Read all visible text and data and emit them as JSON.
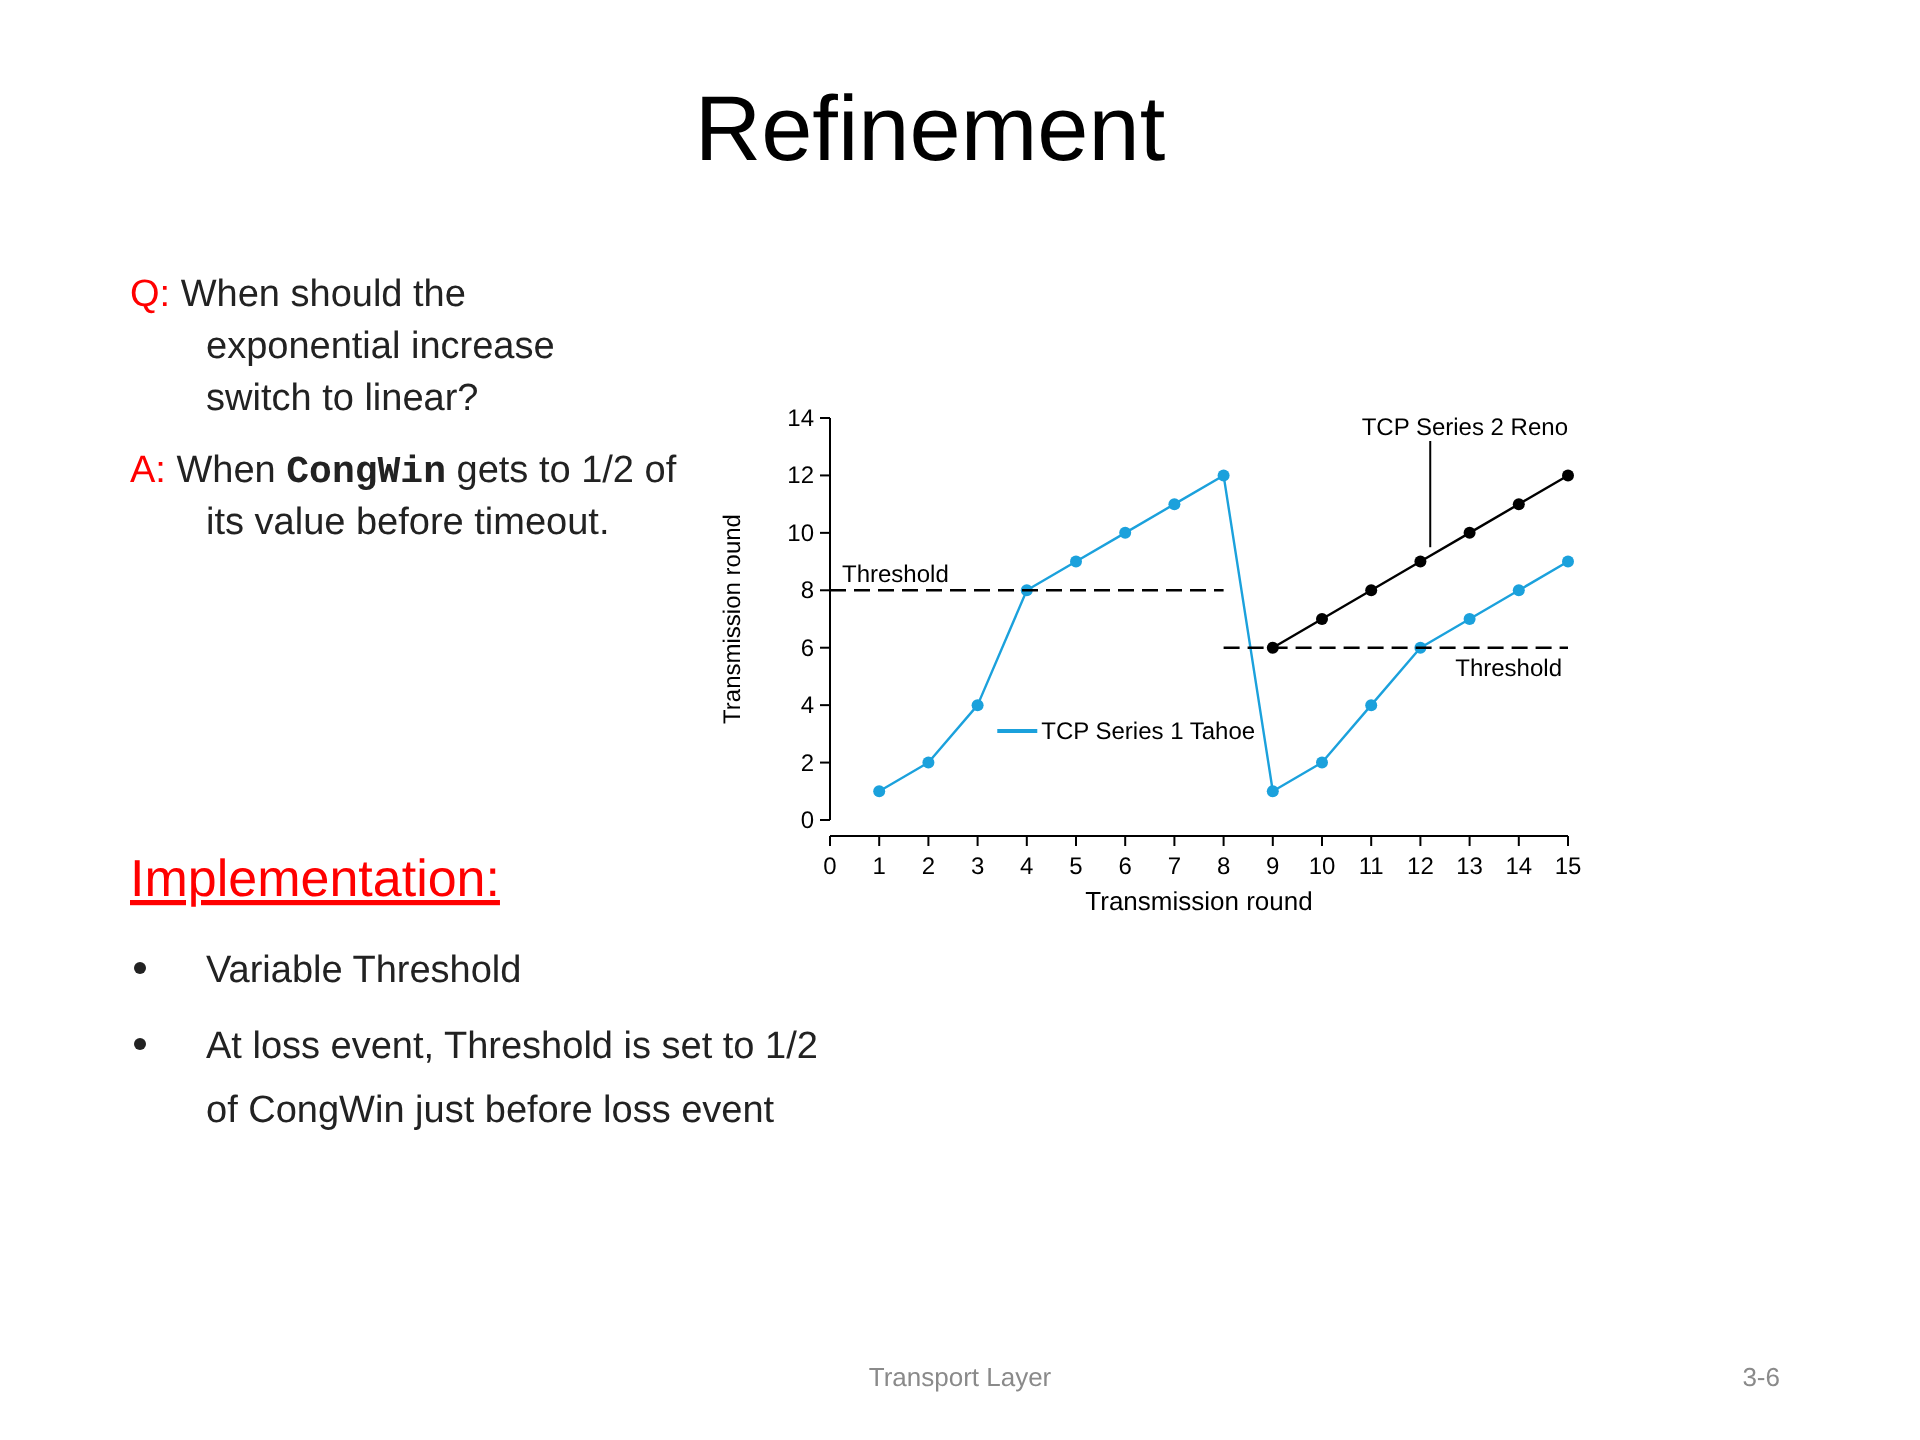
{
  "chart_data": {
    "type": "line",
    "title": "Refinement",
    "xlabel": "Transmission round",
    "ylabel": "Transmission round",
    "xlim": [
      0,
      15
    ],
    "ylim": [
      0,
      14
    ],
    "xticks": [
      0,
      1,
      2,
      3,
      4,
      5,
      6,
      7,
      8,
      9,
      10,
      11,
      12,
      13,
      14,
      15
    ],
    "yticks": [
      0,
      2,
      4,
      6,
      8,
      10,
      12,
      14
    ],
    "marker": "circle",
    "series": [
      {
        "name": "TCP Series 1 Tahoe",
        "color": "#1ba1dc",
        "x": [
          1,
          2,
          3,
          4,
          5,
          6,
          7,
          8,
          9,
          10,
          11,
          12,
          13,
          14,
          15
        ],
        "values": [
          1,
          2,
          4,
          8,
          9,
          10,
          11,
          12,
          1,
          2,
          4,
          6,
          7,
          8,
          9
        ]
      },
      {
        "name": "TCP Series 2 Reno",
        "color": "#000000",
        "x": [
          9,
          10,
          11,
          12,
          13,
          14,
          15
        ],
        "values": [
          6,
          7,
          8,
          9,
          10,
          11,
          12
        ]
      },
      {
        "type": "line",
        "color": "#000000",
        "line_style": "dashed",
        "marker": "none",
        "x": [
          0,
          8
        ],
        "values": [
          8,
          8
        ]
      },
      {
        "type": "line",
        "color": "#000000",
        "line_style": "dashed",
        "marker": "none",
        "x": [
          8,
          15
        ],
        "values": [
          6,
          6
        ]
      }
    ],
    "annotations": [
      "Q:",
      "When should the exponential increase switch to linear?",
      "A:",
      "When",
      "CongWin",
      "gets to 1/2 of its value before timeout.",
      "Implementation:",
      "Variable Threshold",
      "At loss event, Threshold is set to 1/2 of CongWin just before loss event",
      "Transport Layer",
      "3-6",
      {
        "text": "Threshold",
        "x": 0,
        "y": 8
      },
      {
        "text": "Threshold",
        "x": 15,
        "y": 6
      }
    ]
  }
}
